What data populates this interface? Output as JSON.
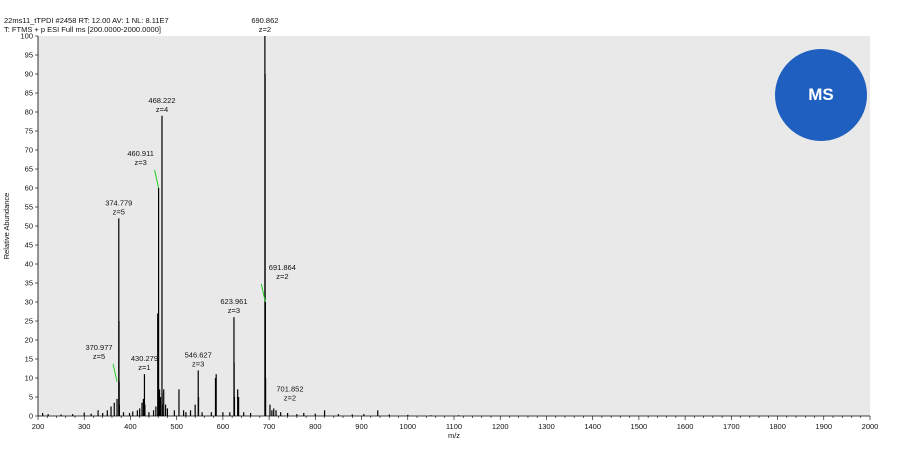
{
  "header": {
    "line1": "22ms11_tTPDI #2458 RT: 12.00 AV: 1 NL: 8.11E7",
    "line2": "T: FTMS + p ESI Full ms [200.0000-2000.0000]"
  },
  "badge": {
    "label": "MS",
    "color": "#1f5fbf"
  },
  "chart_data": {
    "type": "bar",
    "title": "",
    "xlabel": "m/z",
    "ylabel": "Relative Abundance",
    "xlim": [
      200,
      2000
    ],
    "ylim": [
      0,
      100
    ],
    "x_ticks": [
      200,
      300,
      400,
      500,
      600,
      700,
      800,
      900,
      1000,
      1100,
      1200,
      1300,
      1400,
      1500,
      1600,
      1700,
      1800,
      1900,
      2000
    ],
    "y_ticks": [
      0,
      5,
      10,
      15,
      20,
      25,
      30,
      35,
      40,
      45,
      50,
      55,
      60,
      65,
      70,
      75,
      80,
      85,
      90,
      95,
      100
    ],
    "grid": false,
    "background": "#e9e9e9",
    "peak_color": "#000000",
    "annotation_line_color": "#22cc22",
    "peaks": [
      {
        "mz": 210,
        "rel": 0.8
      },
      {
        "mz": 222,
        "rel": 0.5
      },
      {
        "mz": 250,
        "rel": 0.4
      },
      {
        "mz": 275,
        "rel": 0.5
      },
      {
        "mz": 300,
        "rel": 0.9
      },
      {
        "mz": 315,
        "rel": 0.6
      },
      {
        "mz": 330,
        "rel": 1.5
      },
      {
        "mz": 340,
        "rel": 0.8
      },
      {
        "mz": 350,
        "rel": 1.5
      },
      {
        "mz": 358,
        "rel": 2.5
      },
      {
        "mz": 365,
        "rel": 3.5
      },
      {
        "mz": 371,
        "rel": 4.5
      },
      {
        "mz": 374.779,
        "rel": 52
      },
      {
        "mz": 375.2,
        "rel": 25
      },
      {
        "mz": 375.6,
        "rel": 9
      },
      {
        "mz": 376,
        "rel": 3
      },
      {
        "mz": 385,
        "rel": 1
      },
      {
        "mz": 398,
        "rel": 0.8
      },
      {
        "mz": 405,
        "rel": 1.2
      },
      {
        "mz": 415,
        "rel": 1.5
      },
      {
        "mz": 420,
        "rel": 2
      },
      {
        "mz": 425,
        "rel": 3.5
      },
      {
        "mz": 428,
        "rel": 4.5
      },
      {
        "mz": 430.279,
        "rel": 11
      },
      {
        "mz": 431.3,
        "rel": 3
      },
      {
        "mz": 440,
        "rel": 1
      },
      {
        "mz": 450,
        "rel": 1.5
      },
      {
        "mz": 455,
        "rel": 2.5
      },
      {
        "mz": 459,
        "rel": 27
      },
      {
        "mz": 460.911,
        "rel": 60
      },
      {
        "mz": 461.3,
        "rel": 6
      },
      {
        "mz": 462,
        "rel": 5
      },
      {
        "mz": 463,
        "rel": 7
      },
      {
        "mz": 465,
        "rel": 5
      },
      {
        "mz": 468.222,
        "rel": 79
      },
      {
        "mz": 468.5,
        "rel": 6
      },
      {
        "mz": 469,
        "rel": 3
      },
      {
        "mz": 472,
        "rel": 7
      },
      {
        "mz": 476,
        "rel": 3
      },
      {
        "mz": 480,
        "rel": 2
      },
      {
        "mz": 495,
        "rel": 1.5
      },
      {
        "mz": 505,
        "rel": 7
      },
      {
        "mz": 515,
        "rel": 1.5
      },
      {
        "mz": 520,
        "rel": 1
      },
      {
        "mz": 530,
        "rel": 1.5
      },
      {
        "mz": 540,
        "rel": 3
      },
      {
        "mz": 546.627,
        "rel": 12
      },
      {
        "mz": 547.3,
        "rel": 5
      },
      {
        "mz": 555,
        "rel": 1
      },
      {
        "mz": 575,
        "rel": 1
      },
      {
        "mz": 584,
        "rel": 10
      },
      {
        "mz": 585.5,
        "rel": 11
      },
      {
        "mz": 600,
        "rel": 1
      },
      {
        "mz": 615,
        "rel": 1
      },
      {
        "mz": 623.961,
        "rel": 26
      },
      {
        "mz": 624.3,
        "rel": 14
      },
      {
        "mz": 625,
        "rel": 5
      },
      {
        "mz": 632,
        "rel": 7
      },
      {
        "mz": 634,
        "rel": 5
      },
      {
        "mz": 645,
        "rel": 1
      },
      {
        "mz": 660,
        "rel": 0.8
      },
      {
        "mz": 690.862,
        "rel": 100
      },
      {
        "mz": 691.364,
        "rel": 90
      },
      {
        "mz": 691.864,
        "rel": 30
      },
      {
        "mz": 692.4,
        "rel": 10
      },
      {
        "mz": 701.852,
        "rel": 3
      },
      {
        "mz": 706,
        "rel": 1.5
      },
      {
        "mz": 710,
        "rel": 2
      },
      {
        "mz": 715,
        "rel": 1.5
      },
      {
        "mz": 725,
        "rel": 1
      },
      {
        "mz": 740,
        "rel": 0.8
      },
      {
        "mz": 760,
        "rel": 0.5
      },
      {
        "mz": 775,
        "rel": 0.8
      },
      {
        "mz": 800,
        "rel": 0.6
      },
      {
        "mz": 820,
        "rel": 1.5
      },
      {
        "mz": 850,
        "rel": 0.5
      },
      {
        "mz": 880,
        "rel": 0.4
      },
      {
        "mz": 905,
        "rel": 0.5
      },
      {
        "mz": 935,
        "rel": 1.5
      },
      {
        "mz": 960,
        "rel": 0.4
      },
      {
        "mz": 1000,
        "rel": 0.3
      },
      {
        "mz": 1050,
        "rel": 0.2
      },
      {
        "mz": 1110,
        "rel": 0.2
      }
    ],
    "annotations": [
      {
        "mz": 370.977,
        "rel": 9,
        "label": "370.977",
        "charge": "z=5",
        "line": true
      },
      {
        "mz": 374.779,
        "rel": 52,
        "label": "374.779",
        "charge": "z=5",
        "line": false
      },
      {
        "mz": 430.279,
        "rel": 11,
        "label": "430.279",
        "charge": "z=1",
        "line": false
      },
      {
        "mz": 460.911,
        "rel": 60,
        "label": "460.911",
        "charge": "z=3",
        "line": true
      },
      {
        "mz": 468.222,
        "rel": 79,
        "label": "468.222",
        "charge": "z=4",
        "line": false
      },
      {
        "mz": 546.627,
        "rel": 12,
        "label": "546.627",
        "charge": "z=3",
        "line": false
      },
      {
        "mz": 623.961,
        "rel": 26,
        "label": "623.961",
        "charge": "z=3",
        "line": false
      },
      {
        "mz": 690.862,
        "rel": 100,
        "label": "690.862",
        "charge": "z=2",
        "line": false
      },
      {
        "mz": 691.864,
        "rel": 30,
        "label": "691.864",
        "charge": "z=2",
        "line": true
      },
      {
        "mz": 701.852,
        "rel": 3,
        "label": "701.852",
        "charge": "z=2",
        "line": false
      }
    ]
  }
}
